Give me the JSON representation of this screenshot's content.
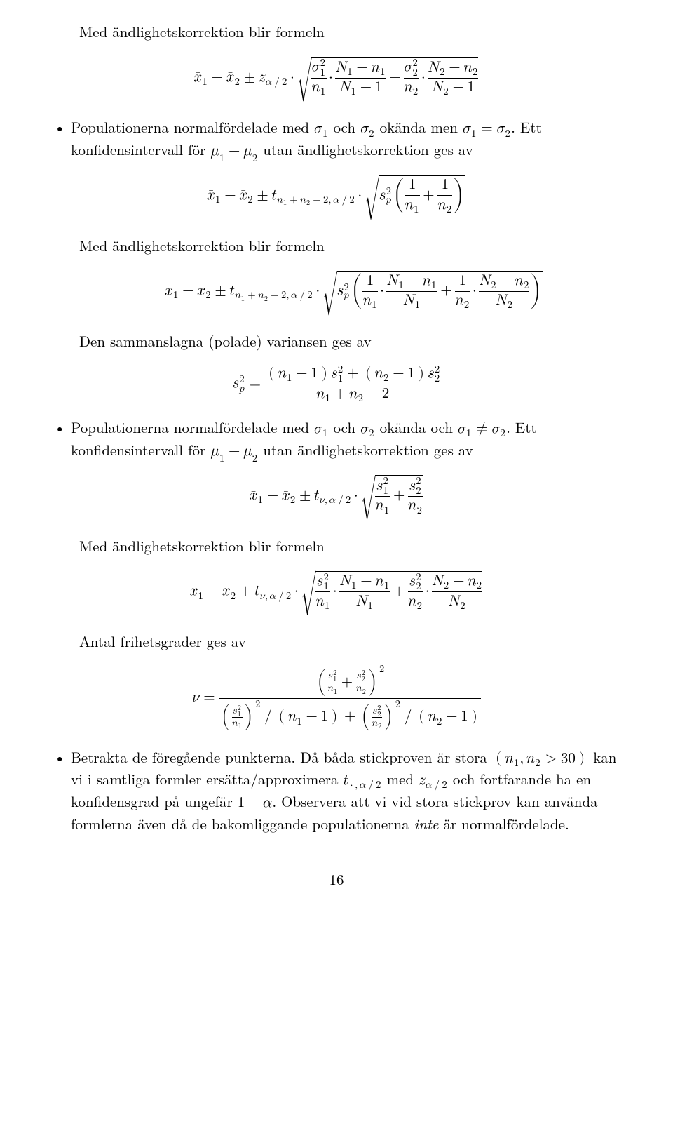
{
  "text": {
    "p1_intro": "Med ändlighetskorrektion blir formeln",
    "p2_bullet_pre": "Populationerna normalfördelade med ",
    "p2_bullet_post": ". Ett konfidensintervall för ",
    "p2_bullet_end": " utan ändlighetskorrektion ges av",
    "p3_intro": "Med ändlighetskorrektion blir formeln",
    "p4_intro": "Den sammanslagna (polade) variansen ges av",
    "p5_bullet_pre": "Populationerna normalfördelade med ",
    "p5_bullet_mid": ". Ett konfidensintervall för ",
    "p5_bullet_end": " utan ändlighetskorrektion ges av",
    "p6_intro": "Med ändlighetskorrektion blir formeln",
    "p7_intro": "Antal frihetsgrader ges av",
    "p8_bullet_a": "Betrakta de föregående punkterna. Då båda stickproven är stora ",
    "p8_bullet_b": " kan vi i samtliga formler ersätta/approximera ",
    "p8_bullet_c": " med ",
    "p8_bullet_d": " och fortfarande ha en konfidensgrad på ungefär ",
    "p8_bullet_e": ". Observera att vi vid stora stickprov kan använda formlerna även då de bakomliggande populationerna ",
    "p8_bullet_f": " är normalfördelade.",
    "inte": "inte",
    "sigma_known_phrase": " okända men ",
    "sigma_ne_phrase": " okända och ",
    "och": " och ",
    "page_num": "16"
  }
}
